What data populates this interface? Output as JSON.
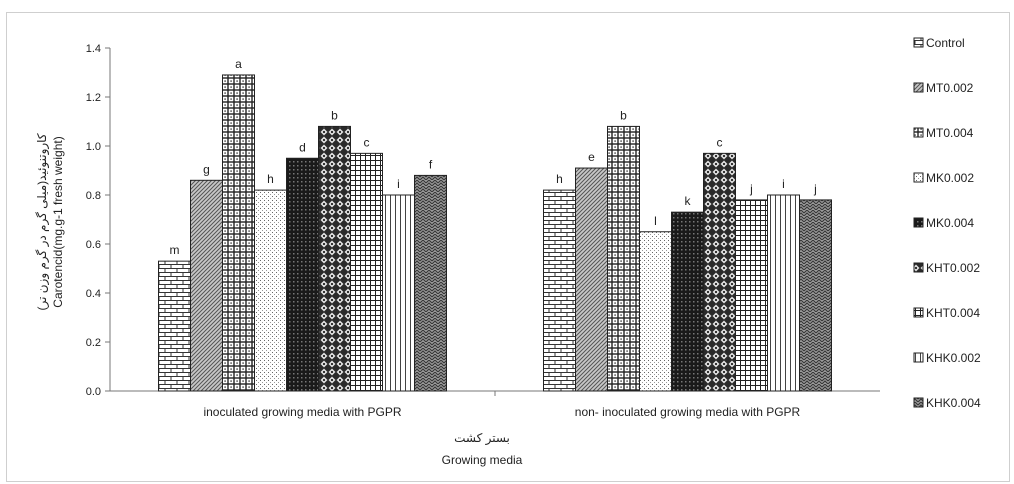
{
  "chart_data": {
    "type": "bar",
    "xlabel": "Growing media",
    "xlabel_fa": "بستر کشت",
    "ylabel": "Carotencid(mg.g-1 fresh weight)",
    "ylabel_fa": "(کاروتنوئید(میلی گرم در گرم وزن تر",
    "ylim": [
      0,
      1.4
    ],
    "yticks": [
      "0.0",
      "0.2",
      "0.4",
      "0.6",
      "0.8",
      "1.0",
      "1.2",
      "1.4"
    ],
    "grid": false,
    "legend_position": "right",
    "categories": [
      "inoculated growing media with PGPR",
      "non- inoculated growing media with PGPR"
    ],
    "series": [
      {
        "name": "Control",
        "values": [
          0.53,
          0.82
        ],
        "letters": [
          "m",
          "h"
        ],
        "pattern": "brick"
      },
      {
        "name": "MT0.002",
        "values": [
          0.86,
          0.91
        ],
        "letters": [
          "g",
          "e"
        ],
        "pattern": "dense-diag"
      },
      {
        "name": "MT0.004",
        "values": [
          1.29,
          1.08
        ],
        "letters": [
          "a",
          "b"
        ],
        "pattern": "grid-dots"
      },
      {
        "name": "MK0.002",
        "values": [
          0.82,
          0.65
        ],
        "letters": [
          "h",
          "l"
        ],
        "pattern": "light-dots"
      },
      {
        "name": "MK0.004",
        "values": [
          0.95,
          0.73
        ],
        "letters": [
          "d",
          "k"
        ],
        "pattern": "dark-grid"
      },
      {
        "name": "KHT0.002",
        "values": [
          1.08,
          0.97
        ],
        "letters": [
          "b",
          "c"
        ],
        "pattern": "diamond"
      },
      {
        "name": "KHT0.004",
        "values": [
          0.97,
          0.78
        ],
        "letters": [
          "c",
          "j"
        ],
        "pattern": "small-grid"
      },
      {
        "name": "KHK0.002",
        "values": [
          0.8,
          0.8
        ],
        "letters": [
          "i",
          "i"
        ],
        "pattern": "vlines"
      },
      {
        "name": "KHK0.004",
        "values": [
          0.88,
          0.78
        ],
        "letters": [
          "f",
          "j"
        ],
        "pattern": "zigzag"
      }
    ]
  }
}
